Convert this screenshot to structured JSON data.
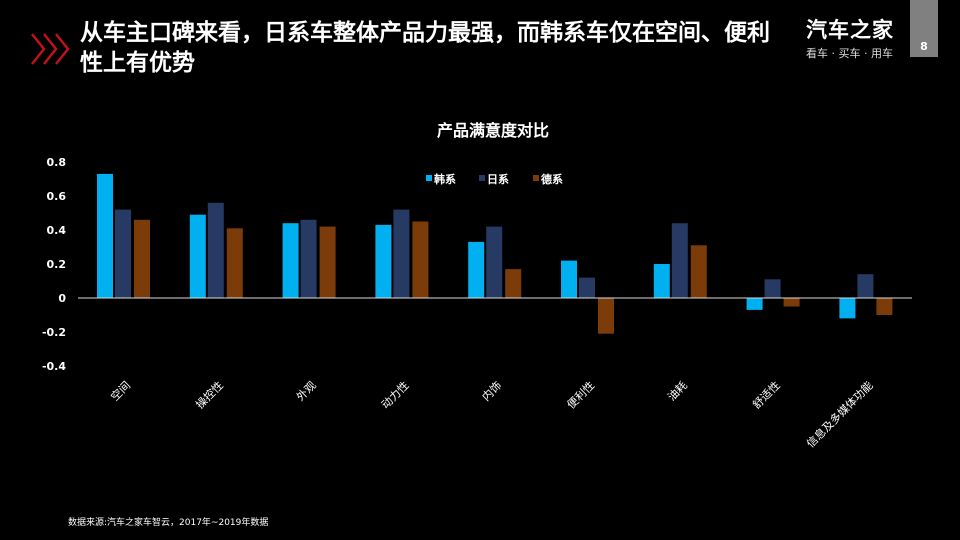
{
  "header": {
    "title": "从车主口碑来看，日系车整体产品力最强，而韩系车仅在空间、便利性上有优势",
    "logo_main": "汽车之家",
    "logo_sub": "看车 · 买车 · 用车",
    "page_number": "8",
    "accent_color": "#c0121b"
  },
  "footer": {
    "source": "数据来源:汽车之家车智云，2017年~2019年数据"
  },
  "chart_data": {
    "type": "bar",
    "title": "产品满意度对比",
    "categories": [
      "空间",
      "操控性",
      "外观",
      "动力性",
      "内饰",
      "便利性",
      "油耗",
      "舒适性",
      "信息及多媒体功能"
    ],
    "series": [
      {
        "name": "韩系",
        "color": "#00b0f0",
        "values": [
          0.73,
          0.49,
          0.44,
          0.43,
          0.33,
          0.22,
          0.2,
          -0.07,
          -0.12
        ]
      },
      {
        "name": "日系",
        "color": "#263a63",
        "values": [
          0.52,
          0.56,
          0.46,
          0.52,
          0.42,
          0.12,
          0.44,
          0.11,
          0.14
        ]
      },
      {
        "name": "德系",
        "color": "#7b3c0a",
        "values": [
          0.46,
          0.41,
          0.42,
          0.45,
          0.17,
          -0.21,
          0.31,
          -0.05,
          -0.1
        ]
      }
    ],
    "ylim": [
      -0.4,
      0.8
    ],
    "yticks": [
      "0.8",
      "0.6",
      "0.4",
      "0.2",
      "0",
      "-0.2",
      "-0.4"
    ],
    "legend_position": "top-center",
    "grid": false
  }
}
